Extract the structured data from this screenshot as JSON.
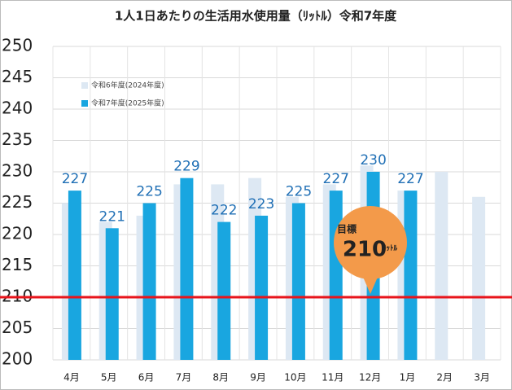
{
  "chart_data": {
    "type": "bar",
    "title": "1人1日あたりの生活用水使用量（ﾘｯﾄﾙ）令和7年度",
    "categories": [
      "4月",
      "5月",
      "6月",
      "7月",
      "8月",
      "9月",
      "10月",
      "11月",
      "12月",
      "1月",
      "2月",
      "3月"
    ],
    "series": [
      {
        "name": "令和6年度(2024年度)",
        "color": "#dde8f3",
        "values": [
          225,
          222,
          223,
          228,
          228,
          229,
          226,
          228,
          231,
          227,
          230,
          226
        ]
      },
      {
        "name": "令和7年度(2025年度)",
        "color": "#19a6e0",
        "values": [
          227,
          221,
          225,
          229,
          222,
          223,
          225,
          227,
          230,
          227,
          null,
          null
        ]
      }
    ],
    "ylim": [
      200,
      250
    ],
    "yticks": [
      200,
      205,
      210,
      215,
      220,
      225,
      230,
      235,
      240,
      245,
      250
    ],
    "grid": true,
    "legend": "top-left",
    "target": {
      "value": 210,
      "label": "目標",
      "unit": "ﾘｯﾄﾙ",
      "color": "#e8141b"
    }
  }
}
